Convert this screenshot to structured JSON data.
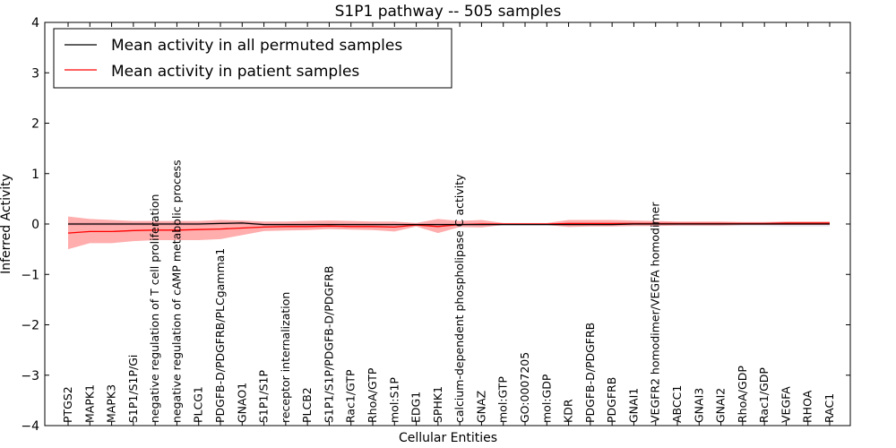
{
  "chart_data": {
    "type": "line",
    "title": "S1P1 pathway -- 505 samples",
    "xlabel": "Cellular Entities",
    "ylabel": "Inferred Activity",
    "ylim": [
      -4,
      4
    ],
    "yticks": [
      -4,
      -3,
      -2,
      -1,
      0,
      1,
      2,
      3,
      4
    ],
    "ytick_labels": [
      "−4",
      "−3",
      "−2",
      "−1",
      "0",
      "1",
      "2",
      "3",
      "4"
    ],
    "grid": false,
    "legend_position": "top-left",
    "categories": [
      "PTGS2",
      "MAPK1",
      "MAPK3",
      "S1P1/S1P/Gi",
      "negative regulation of T cell proliferation",
      "negative regulation of cAMP metabolic process",
      "PLCG1",
      "PDGFB-D/PDGFRB/PLCgamma1",
      "GNAO1",
      "S1P1/S1P",
      "receptor internalization",
      "PLCB2",
      "S1P1/S1P/PDGFB-D/PDGFRB",
      "Rac1/GTP",
      "RhoA/GTP",
      "mol:S1P",
      "EDG1",
      "SPHK1",
      "calcium-dependent phospholipase C activity",
      "GNAZ",
      "mol:GTP",
      "GO:0007205",
      "mol:GDP",
      "KDR",
      "PDGFB-D/PDGFRB",
      "PDGFRB",
      "GNAI1",
      "VEGFR2 homodimer/VEGFA homodimer",
      "ABCC1",
      "GNAI3",
      "GNAI2",
      "RhoA/GDP",
      "Rac1/GDP",
      "VEGFA",
      "RHOA",
      "RAC1"
    ],
    "series": [
      {
        "name": "Mean activity in all permuted samples",
        "color": "#000000",
        "values": [
          0,
          0,
          0,
          0,
          0,
          0,
          0,
          0.01,
          0.02,
          -0.01,
          -0.01,
          -0.01,
          -0.01,
          -0.01,
          -0.01,
          -0.01,
          -0.01,
          -0.01,
          -0.01,
          -0.01,
          -0.01,
          -0.01,
          -0.01,
          -0.01,
          -0.01,
          -0.01,
          0,
          0,
          0,
          0,
          0,
          0,
          0,
          0,
          0,
          0
        ],
        "band": [
          [
            -0.03,
            0.03
          ],
          [
            -0.03,
            0.03
          ],
          [
            -0.03,
            0.03
          ],
          [
            -0.03,
            0.03
          ],
          [
            -0.03,
            0.03
          ],
          [
            -0.03,
            0.03
          ],
          [
            -0.03,
            0.03
          ],
          [
            -0.02,
            0.04
          ],
          [
            -0.01,
            0.05
          ],
          [
            -0.04,
            0.02
          ],
          [
            -0.04,
            0.02
          ],
          [
            -0.04,
            0.02
          ],
          [
            -0.04,
            0.02
          ],
          [
            -0.04,
            0.02
          ],
          [
            -0.04,
            0.02
          ],
          [
            -0.04,
            0.02
          ],
          [
            -0.04,
            0.02
          ],
          [
            -0.04,
            0.02
          ],
          [
            -0.04,
            0.02
          ],
          [
            -0.04,
            0.02
          ],
          [
            -0.03,
            0.01
          ],
          [
            -0.03,
            0.01
          ],
          [
            -0.03,
            0.01
          ],
          [
            -0.03,
            0.02
          ],
          [
            -0.03,
            0.02
          ],
          [
            -0.03,
            0.02
          ],
          [
            -0.03,
            0.03
          ],
          [
            -0.03,
            0.03
          ],
          [
            -0.04,
            0.03
          ],
          [
            -0.04,
            0.03
          ],
          [
            -0.04,
            0.03
          ],
          [
            -0.04,
            0.03
          ],
          [
            -0.04,
            0.03
          ],
          [
            -0.05,
            0.04
          ],
          [
            -0.05,
            0.04
          ],
          [
            -0.05,
            0.04
          ]
        ]
      },
      {
        "name": "Mean activity in patient samples",
        "color": "#ff0000",
        "values": [
          -0.18,
          -0.15,
          -0.15,
          -0.13,
          -0.12,
          -0.12,
          -0.11,
          -0.1,
          -0.08,
          -0.06,
          -0.05,
          -0.05,
          -0.04,
          -0.05,
          -0.05,
          -0.06,
          -0.02,
          -0.05,
          -0.01,
          0,
          0,
          0,
          0,
          0.01,
          0.01,
          0.01,
          0.01,
          0.01,
          0.01,
          0.01,
          0.01,
          0.01,
          0.01,
          0.02,
          0.02,
          0.02
        ],
        "band": [
          [
            -0.5,
            0.15
          ],
          [
            -0.38,
            0.1
          ],
          [
            -0.38,
            0.08
          ],
          [
            -0.34,
            0.06
          ],
          [
            -0.32,
            0.06
          ],
          [
            -0.32,
            0.06
          ],
          [
            -0.32,
            0.06
          ],
          [
            -0.3,
            0.08
          ],
          [
            -0.22,
            0.07
          ],
          [
            -0.14,
            0.05
          ],
          [
            -0.13,
            0.05
          ],
          [
            -0.12,
            0.06
          ],
          [
            -0.1,
            0.07
          ],
          [
            -0.11,
            0.06
          ],
          [
            -0.12,
            0.05
          ],
          [
            -0.15,
            0.05
          ],
          [
            -0.05,
            0.02
          ],
          [
            -0.18,
            0.1
          ],
          [
            -0.06,
            0.06
          ],
          [
            -0.07,
            0.08
          ],
          [
            -0.02,
            0.02
          ],
          [
            -0.02,
            0.02
          ],
          [
            -0.02,
            0.02
          ],
          [
            -0.06,
            0.08
          ],
          [
            -0.05,
            0.08
          ],
          [
            -0.05,
            0.08
          ],
          [
            -0.04,
            0.07
          ],
          [
            -0.04,
            0.06
          ],
          [
            -0.03,
            0.05
          ],
          [
            -0.03,
            0.05
          ],
          [
            -0.03,
            0.05
          ],
          [
            -0.02,
            0.04
          ],
          [
            -0.02,
            0.04
          ],
          [
            -0.02,
            0.05
          ],
          [
            -0.02,
            0.05
          ],
          [
            -0.02,
            0.05
          ]
        ]
      }
    ]
  }
}
